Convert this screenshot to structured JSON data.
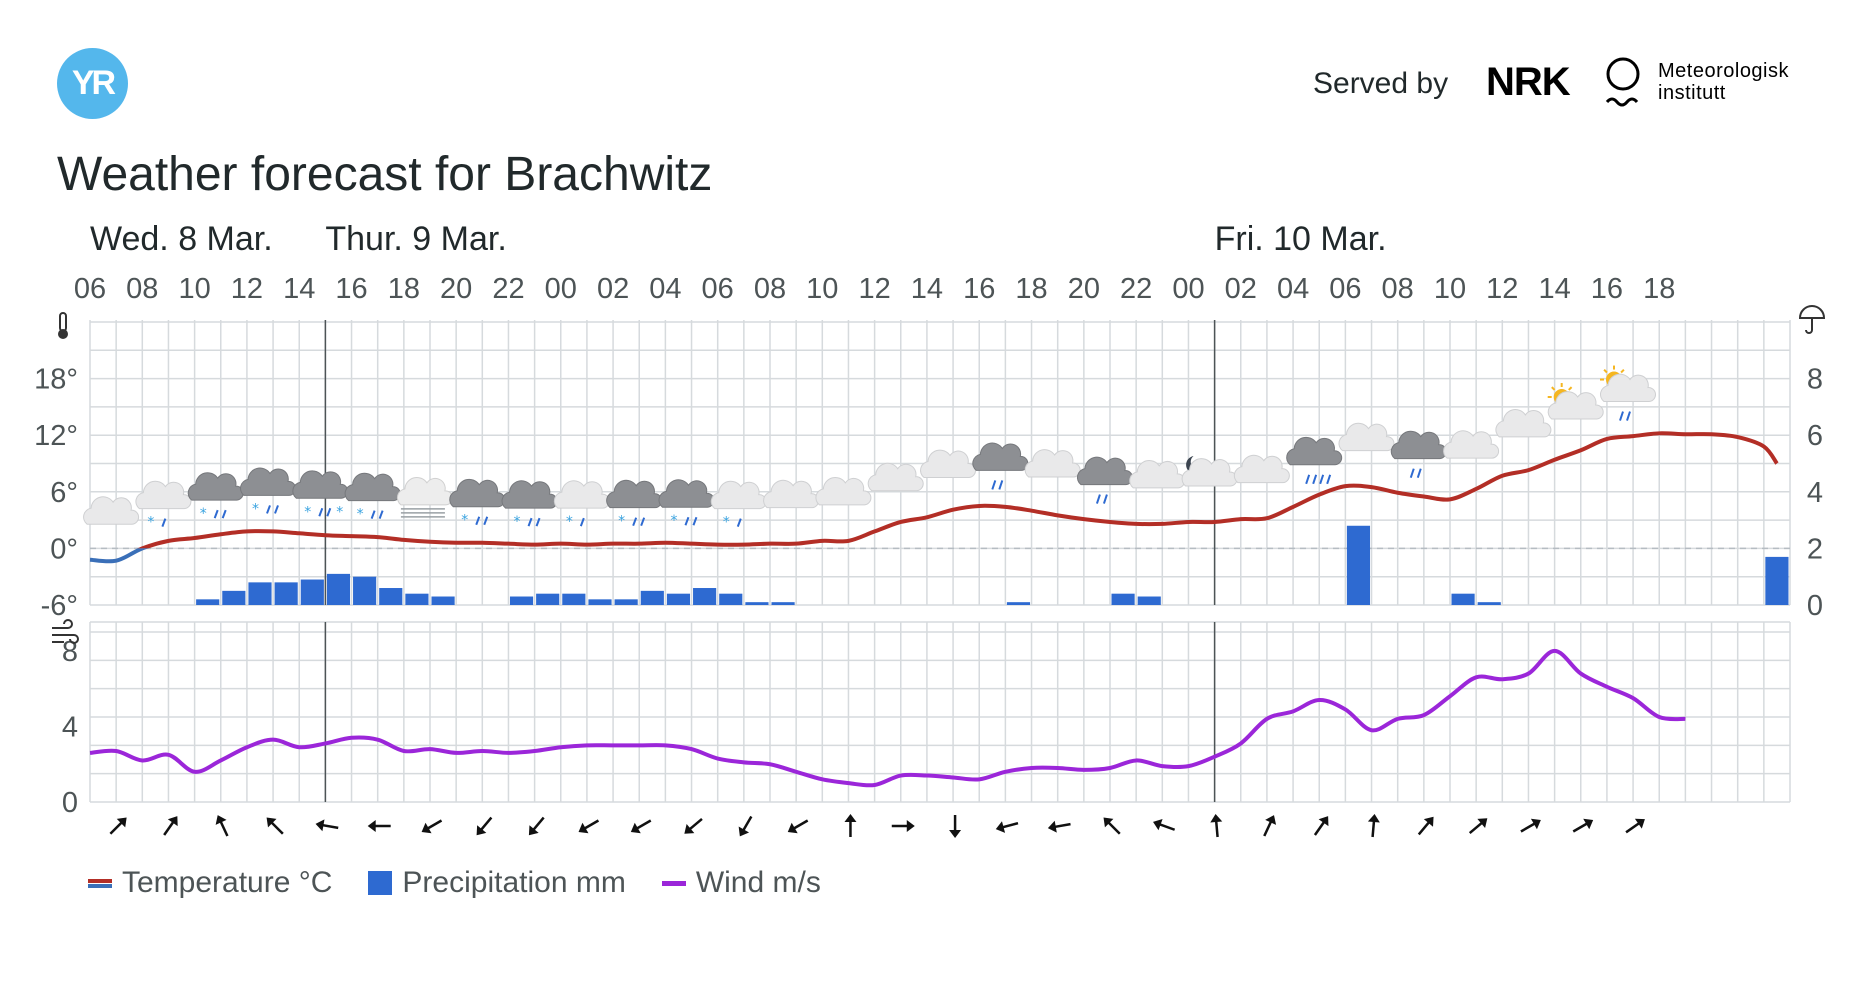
{
  "header": {
    "logo_text": "YR",
    "served_by": "Served by",
    "nrk": "NRK",
    "met_line1": "Meteorologisk",
    "met_line2": "institutt"
  },
  "title": "Weather forecast for Brachwitz",
  "day_labels": [
    "Wed. 8 Mar.",
    "Thur. 9 Mar.",
    "Fri. 10 Mar."
  ],
  "hour_labels": [
    "06",
    "08",
    "10",
    "12",
    "14",
    "16",
    "18",
    "20",
    "22",
    "00",
    "02",
    "04",
    "06",
    "08",
    "10",
    "12",
    "14",
    "16",
    "18",
    "20",
    "22",
    "00",
    "02",
    "04",
    "06",
    "08",
    "10",
    "12",
    "14",
    "16",
    "18"
  ],
  "legend": {
    "temperature": "Temperature °C",
    "precipitation": "Precipitation mm",
    "wind": "Wind m/s"
  },
  "colors": {
    "temperature_warm": "#b32e26",
    "temperature_cold": "#3a6fb8",
    "precipitation": "#2e6ad1",
    "wind": "#9b26d9",
    "grid": "#d6dadd"
  },
  "chart_data": [
    {
      "type": "line+bar",
      "title": "",
      "x_hours_from_wed_06": "hours",
      "temperature_y_ticks": [
        "18°",
        "12°",
        "6°",
        "0°",
        "-6°"
      ],
      "temperature_ylim": [
        -6,
        24
      ],
      "precipitation_y_ticks": [
        "8",
        "6",
        "4",
        "2",
        "0"
      ],
      "precipitation_ylim": [
        0,
        10
      ],
      "temperature": [
        [
          0,
          -1.2
        ],
        [
          2,
          -1.3
        ],
        [
          4,
          0
        ],
        [
          6,
          0.8
        ],
        [
          8,
          1.1
        ],
        [
          10,
          1.5
        ],
        [
          12,
          1.8
        ],
        [
          14,
          1.8
        ],
        [
          16,
          1.6
        ],
        [
          18,
          1.4
        ],
        [
          20,
          1.3
        ],
        [
          22,
          1.2
        ],
        [
          24,
          0.9
        ],
        [
          26,
          0.7
        ],
        [
          28,
          0.6
        ],
        [
          30,
          0.6
        ],
        [
          32,
          0.5
        ],
        [
          34,
          0.4
        ],
        [
          36,
          0.5
        ],
        [
          38,
          0.4
        ],
        [
          40,
          0.5
        ],
        [
          42,
          0.5
        ],
        [
          44,
          0.6
        ],
        [
          46,
          0.5
        ],
        [
          48,
          0.4
        ],
        [
          50,
          0.4
        ],
        [
          52,
          0.5
        ],
        [
          54,
          0.5
        ],
        [
          56,
          0.8
        ],
        [
          58,
          0.8
        ],
        [
          60,
          1.8
        ],
        [
          62,
          2.8
        ],
        [
          64,
          3.3
        ],
        [
          66,
          4.1
        ],
        [
          68,
          4.5
        ],
        [
          70,
          4.4
        ],
        [
          72,
          4.0
        ],
        [
          74,
          3.5
        ],
        [
          76,
          3.1
        ],
        [
          78,
          2.8
        ],
        [
          80,
          2.6
        ],
        [
          82,
          2.6
        ],
        [
          84,
          2.8
        ],
        [
          86,
          2.8
        ],
        [
          88,
          3.1
        ],
        [
          90,
          3.2
        ],
        [
          92,
          4.4
        ],
        [
          94,
          5.7
        ],
        [
          96,
          6.6
        ],
        [
          98,
          6.5
        ],
        [
          100,
          5.9
        ],
        [
          102,
          5.5
        ],
        [
          104,
          5.2
        ],
        [
          106,
          6.3
        ],
        [
          108,
          7.7
        ],
        [
          110,
          8.3
        ],
        [
          112,
          9.4
        ],
        [
          114,
          10.4
        ],
        [
          116,
          11.6
        ],
        [
          118,
          11.9
        ],
        [
          120,
          12.2
        ],
        [
          122,
          12.1
        ],
        [
          124,
          12.1
        ],
        [
          126,
          11.8
        ],
        [
          128,
          10.8
        ],
        [
          129,
          9
        ]
      ],
      "precipitation": [
        [
          8,
          0.2
        ],
        [
          10,
          0.5
        ],
        [
          12,
          0.8
        ],
        [
          14,
          0.8
        ],
        [
          16,
          0.9
        ],
        [
          18,
          1.1
        ],
        [
          20,
          1.0
        ],
        [
          22,
          0.6
        ],
        [
          24,
          0.4
        ],
        [
          26,
          0.3
        ],
        [
          32,
          0.3
        ],
        [
          34,
          0.4
        ],
        [
          36,
          0.4
        ],
        [
          38,
          0.2
        ],
        [
          40,
          0.2
        ],
        [
          42,
          0.5
        ],
        [
          44,
          0.4
        ],
        [
          46,
          0.6
        ],
        [
          48,
          0.4
        ],
        [
          50,
          0.1
        ],
        [
          52,
          0.1
        ],
        [
          70,
          0.1
        ],
        [
          78,
          0.4
        ],
        [
          80,
          0.3
        ],
        [
          96,
          2.8
        ],
        [
          104,
          0.4
        ],
        [
          106,
          0.1
        ],
        [
          128,
          1.7
        ]
      ],
      "weather_icons": [
        [
          1,
          "cloud"
        ],
        [
          5,
          "cloud-sleet"
        ],
        [
          9,
          "cloud-dark-sleet"
        ],
        [
          13,
          "cloud-dark-sleet"
        ],
        [
          17,
          "cloud-dark-sleet-heavy"
        ],
        [
          21,
          "cloud-dark-sleet"
        ],
        [
          25,
          "fog"
        ],
        [
          29,
          "cloud-dark-sleet"
        ],
        [
          33,
          "cloud-dark-sleet"
        ],
        [
          37,
          "cloud-sleet"
        ],
        [
          41,
          "cloud-dark-sleet"
        ],
        [
          45,
          "cloud-dark-sleet"
        ],
        [
          49,
          "cloud-sleet"
        ],
        [
          53,
          "cloud"
        ],
        [
          57,
          "cloud"
        ],
        [
          61,
          "cloud"
        ],
        [
          65,
          "cloud"
        ],
        [
          69,
          "cloud-dark-rain"
        ],
        [
          73,
          "cloud"
        ],
        [
          77,
          "cloud-dark-rain"
        ],
        [
          81,
          "cloud"
        ],
        [
          85,
          "cloud-moon"
        ],
        [
          89,
          "cloud"
        ],
        [
          93,
          "cloud-dark-rain-heavy"
        ],
        [
          97,
          "cloud"
        ],
        [
          101,
          "cloud-dark-rain"
        ],
        [
          105,
          "cloud"
        ],
        [
          109,
          "cloud"
        ],
        [
          113,
          "cloud-sun"
        ],
        [
          117,
          "cloud-sun-rain"
        ]
      ]
    },
    {
      "type": "line",
      "title": "",
      "wind_y_ticks": [
        "8",
        "4",
        "0"
      ],
      "wind_ylim": [
        0,
        9
      ],
      "wind": [
        [
          0,
          2.6
        ],
        [
          2,
          2.7
        ],
        [
          4,
          2.2
        ],
        [
          6,
          2.5
        ],
        [
          8,
          1.6
        ],
        [
          10,
          2.2
        ],
        [
          12,
          2.9
        ],
        [
          14,
          3.3
        ],
        [
          16,
          2.9
        ],
        [
          18,
          3.1
        ],
        [
          20,
          3.4
        ],
        [
          22,
          3.3
        ],
        [
          24,
          2.7
        ],
        [
          26,
          2.8
        ],
        [
          28,
          2.6
        ],
        [
          30,
          2.7
        ],
        [
          32,
          2.6
        ],
        [
          34,
          2.7
        ],
        [
          36,
          2.9
        ],
        [
          38,
          3.0
        ],
        [
          40,
          3.0
        ],
        [
          42,
          3.0
        ],
        [
          44,
          3.0
        ],
        [
          46,
          2.8
        ],
        [
          48,
          2.3
        ],
        [
          50,
          2.1
        ],
        [
          52,
          2.0
        ],
        [
          54,
          1.6
        ],
        [
          56,
          1.2
        ],
        [
          58,
          1.0
        ],
        [
          60,
          0.9
        ],
        [
          62,
          1.4
        ],
        [
          64,
          1.4
        ],
        [
          66,
          1.3
        ],
        [
          68,
          1.2
        ],
        [
          70,
          1.6
        ],
        [
          72,
          1.8
        ],
        [
          74,
          1.8
        ],
        [
          76,
          1.7
        ],
        [
          78,
          1.8
        ],
        [
          80,
          2.2
        ],
        [
          82,
          1.9
        ],
        [
          84,
          1.9
        ],
        [
          86,
          2.4
        ],
        [
          88,
          3.1
        ],
        [
          90,
          4.4
        ],
        [
          92,
          4.8
        ],
        [
          94,
          5.4
        ],
        [
          96,
          4.9
        ],
        [
          98,
          3.8
        ],
        [
          100,
          4.4
        ],
        [
          102,
          4.6
        ],
        [
          104,
          5.6
        ],
        [
          106,
          6.6
        ],
        [
          108,
          6.5
        ],
        [
          110,
          6.8
        ],
        [
          112,
          8.0
        ],
        [
          114,
          6.8
        ],
        [
          116,
          6.1
        ],
        [
          118,
          5.5
        ],
        [
          120,
          4.5
        ],
        [
          122,
          4.4
        ]
      ],
      "wind_direction_arrows_deg": [
        45,
        35,
        -25,
        -45,
        -80,
        -90,
        -120,
        -140,
        -140,
        -120,
        -120,
        -130,
        -150,
        -120,
        0,
        90,
        180,
        -105,
        -100,
        -45,
        -70,
        -5,
        25,
        35,
        5,
        40,
        50,
        60,
        60,
        55
      ]
    }
  ]
}
